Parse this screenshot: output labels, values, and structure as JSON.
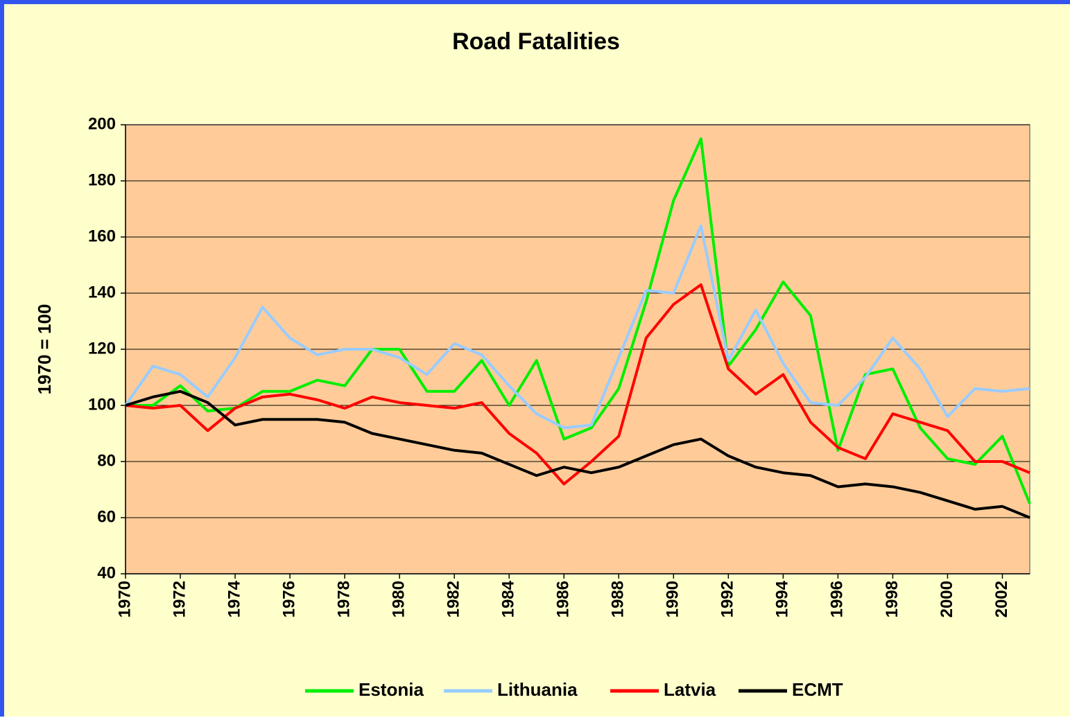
{
  "chart_data": {
    "type": "line",
    "title": "Road Fatalities",
    "y_label": "1970 = 100",
    "x": [
      1970,
      1971,
      1972,
      1973,
      1974,
      1975,
      1976,
      1977,
      1978,
      1979,
      1980,
      1981,
      1982,
      1983,
      1984,
      1985,
      1986,
      1987,
      1988,
      1989,
      1990,
      1991,
      1992,
      1993,
      1994,
      1995,
      1996,
      1997,
      1998,
      1999,
      2000,
      2001,
      2002,
      2003
    ],
    "xlim": [
      1970,
      2003
    ],
    "xticks": [
      1970,
      1972,
      1974,
      1976,
      1978,
      1980,
      1982,
      1984,
      1986,
      1988,
      1990,
      1992,
      1994,
      1996,
      1998,
      2000,
      2002
    ],
    "ylim": [
      40,
      200
    ],
    "yticks": [
      40,
      60,
      80,
      100,
      120,
      140,
      160,
      180,
      200
    ],
    "grid": true,
    "legend": "bottom",
    "series": [
      {
        "name": "Estonia",
        "color": "#00ee00",
        "values": [
          100,
          100,
          107,
          98,
          99,
          105,
          105,
          109,
          107,
          120,
          120,
          105,
          105,
          116,
          100,
          116,
          88,
          92,
          106,
          137,
          173,
          195,
          114,
          127,
          144,
          132,
          84,
          111,
          113,
          92,
          81,
          79,
          89,
          65
        ]
      },
      {
        "name": "Lithuania",
        "color": "#99ccff",
        "values": [
          100,
          114,
          111,
          103,
          117,
          135,
          124,
          118,
          120,
          120,
          117,
          111,
          122,
          118,
          107,
          97,
          92,
          93,
          117,
          141,
          140,
          164,
          116,
          134,
          115,
          101,
          100,
          110,
          124,
          113,
          96,
          106,
          105,
          106
        ]
      },
      {
        "name": "Latvia",
        "color": "#ff0000",
        "values": [
          100,
          99,
          100,
          91,
          99,
          103,
          104,
          102,
          99,
          103,
          101,
          100,
          99,
          101,
          90,
          83,
          72,
          80,
          89,
          124,
          136,
          143,
          113,
          104,
          111,
          94,
          85,
          81,
          97,
          94,
          91,
          80,
          80,
          76
        ]
      },
      {
        "name": "ECMT",
        "color": "#000000",
        "values": [
          100,
          103,
          105,
          101,
          93,
          95,
          95,
          95,
          94,
          90,
          88,
          86,
          84,
          83,
          79,
          75,
          78,
          76,
          78,
          82,
          86,
          88,
          82,
          78,
          76,
          75,
          71,
          72,
          71,
          69,
          66,
          63,
          64,
          60
        ]
      }
    ]
  }
}
